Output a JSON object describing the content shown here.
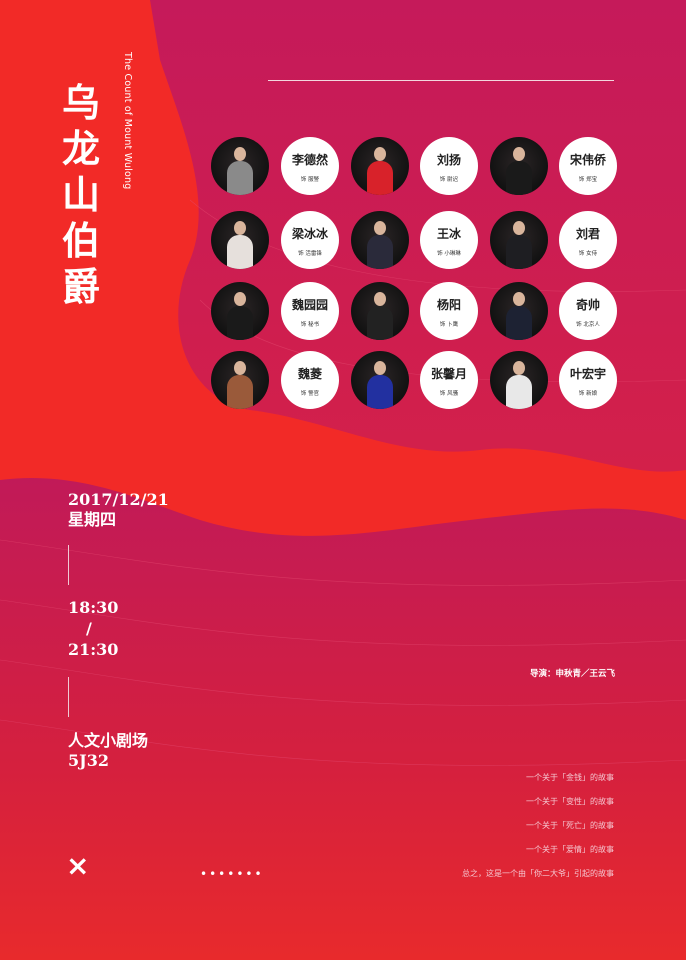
{
  "colors": {
    "red": "#f22a27",
    "magenta": "#c81a55",
    "white": "#ffffff"
  },
  "poster": {
    "title": "乌龙山伯爵",
    "subtitle": "The Count of Mount Wulong",
    "date": "2017/12/21",
    "weekday": "星期四",
    "time_start": "18:30",
    "time_sep": "/",
    "time_end": "21:30",
    "venue": "人文小剧场",
    "room": "5J32",
    "director": "导演：申秋青／王云飞",
    "story_lines": [
      "一个关于「金钱」的故事",
      "一个关于「变性」的故事",
      "一个关于「死亡」的故事",
      "一个关于「爱情」的故事",
      "总之，这是一个由「你二大爷」引起的故事"
    ],
    "close_icon": "×",
    "more_dots": "•••••••"
  },
  "cast": [
    {
      "name": "李德然",
      "role": "饰 服警",
      "outfit": "#8a8a8a"
    },
    {
      "name": "刘扬",
      "role": "饰 尉迟",
      "outfit": "#d8222a"
    },
    {
      "name": "宋伟侨",
      "role": "饰 郑宝",
      "outfit": "#1a1a1a"
    },
    {
      "name": "梁冰冰",
      "role": "饰 活雷锋",
      "outfit": "#e6e0dc"
    },
    {
      "name": "王冰",
      "role": "饰 小琳琳",
      "outfit": "#2a2a3a"
    },
    {
      "name": "刘君",
      "role": "饰 女侍",
      "outfit": "#1e1e22"
    },
    {
      "name": "魏园园",
      "role": "饰 秘书",
      "outfit": "#1a1a1a"
    },
    {
      "name": "杨阳",
      "role": "饰 卜鹰",
      "outfit": "#222"
    },
    {
      "name": "奇帅",
      "role": "饰 北京人",
      "outfit": "#1d2233"
    },
    {
      "name": "魏菱",
      "role": "饰 警官",
      "outfit": "#9a5a3a"
    },
    {
      "name": "张馨月",
      "role": "饰 风骚",
      "outfit": "#2230a0"
    },
    {
      "name": "叶宏宇",
      "role": "饰 新娘",
      "outfit": "#e8e8e8"
    }
  ]
}
